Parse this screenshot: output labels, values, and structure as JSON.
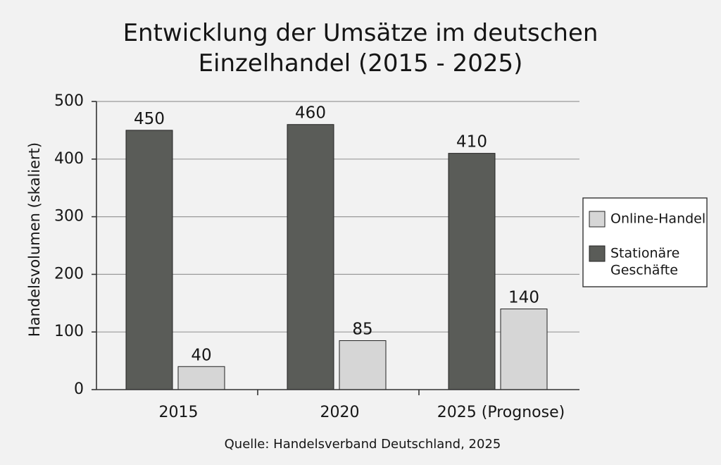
{
  "chart_data": {
    "type": "bar",
    "title_lines": [
      "Entwicklung der Umsätze im deutschen",
      "Einzelhandel (2015 - 2025)"
    ],
    "categories": [
      "2015",
      "2020",
      "2025 (Prognose)"
    ],
    "series": [
      {
        "name": "Stationäre Geschäfte",
        "values": [
          450,
          460,
          410
        ],
        "color": "#5a5c58"
      },
      {
        "name": "Online-Handel",
        "values": [
          40,
          85,
          140
        ],
        "color": "#d6d6d6"
      }
    ],
    "xlabel": "",
    "ylabel": "Handelsvolumen (skaliert)",
    "ylim": [
      0,
      500
    ],
    "yticks": [
      0,
      100,
      200,
      300,
      400,
      500
    ],
    "grid": true,
    "legend": {
      "placement": "right",
      "entries": [
        {
          "series": 1,
          "label_lines": [
            "Online-Handel"
          ]
        },
        {
          "series": 0,
          "label_lines": [
            "Stationäre",
            "Geschäfte"
          ]
        }
      ]
    },
    "source": "Quelle: Handelsverband Deutschland, 2025"
  }
}
